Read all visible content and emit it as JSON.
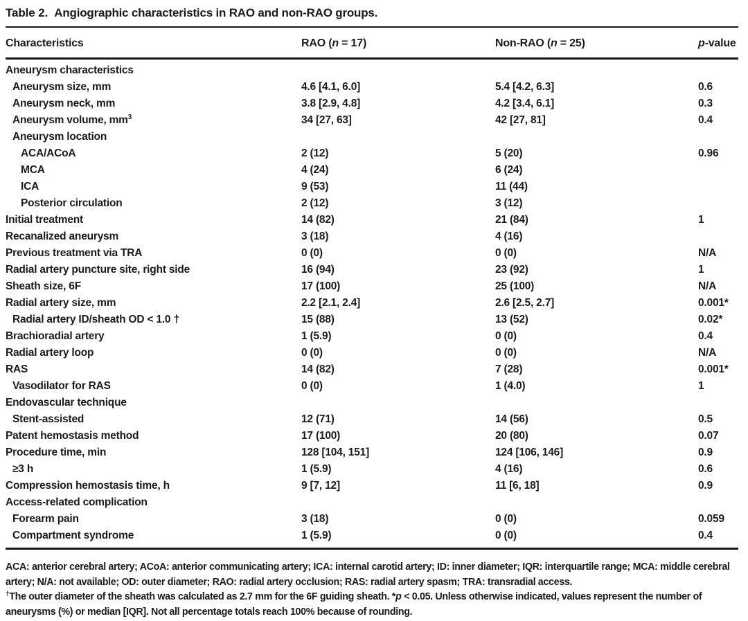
{
  "title": {
    "label": "Table 2.",
    "text": "Angiographic characteristics in RAO and non-RAO groups."
  },
  "columns": {
    "characteristics": "Characteristics",
    "rao": {
      "prefix": "RAO (",
      "var": "n",
      "rest": " = 17)"
    },
    "nonrao": {
      "prefix": "Non-RAO (",
      "var": "n",
      "rest": " = 25)"
    },
    "pvalue": {
      "var": "p",
      "rest": "-value"
    }
  },
  "table": {
    "rows": [
      {
        "label": "Aneurysm characteristics",
        "indent": 0,
        "rao": "",
        "nonrao": "",
        "p": ""
      },
      {
        "label": "Aneurysm size, mm",
        "indent": 1,
        "rao": "4.6 [4.1, 6.0]",
        "nonrao": "5.4 [4.2, 6.3]",
        "p": "0.6"
      },
      {
        "label": "Aneurysm neck, mm",
        "indent": 1,
        "rao": "3.8 [2.9, 4.8]",
        "nonrao": "4.2 [3.4, 6.1]",
        "p": "0.3"
      },
      {
        "label": "Aneurysm volume, mm",
        "sup": "3",
        "indent": 1,
        "rao": "34 [27, 63]",
        "nonrao": "42 [27, 81]",
        "p": "0.4"
      },
      {
        "label": "Aneurysm location",
        "indent": 1,
        "rao": "",
        "nonrao": "",
        "p": ""
      },
      {
        "label": "ACA/ACoA",
        "indent": 2,
        "rao": "2 (12)",
        "nonrao": "5 (20)",
        "p": "0.96"
      },
      {
        "label": "MCA",
        "indent": 2,
        "rao": "4 (24)",
        "nonrao": "6 (24)",
        "p": ""
      },
      {
        "label": "ICA",
        "indent": 2,
        "rao": "9 (53)",
        "nonrao": "11 (44)",
        "p": ""
      },
      {
        "label": "Posterior circulation",
        "indent": 2,
        "rao": "2 (12)",
        "nonrao": "3 (12)",
        "p": ""
      },
      {
        "label": "Initial treatment",
        "indent": 0,
        "rao": "14 (82)",
        "nonrao": "21 (84)",
        "p": "1"
      },
      {
        "label": "Recanalized aneurysm",
        "indent": 0,
        "rao": "3 (18)",
        "nonrao": "4 (16)",
        "p": ""
      },
      {
        "label": "Previous treatment via TRA",
        "indent": 0,
        "rao": "0 (0)",
        "nonrao": "0 (0)",
        "p": "N/A"
      },
      {
        "label": "Radial artery puncture site, right side",
        "indent": 0,
        "rao": "16 (94)",
        "nonrao": "23 (92)",
        "p": "1"
      },
      {
        "label": "Sheath size, 6F",
        "indent": 0,
        "rao": "17 (100)",
        "nonrao": "25 (100)",
        "p": "N/A"
      },
      {
        "label": "Radial artery size, mm",
        "indent": 0,
        "rao": "2.2 [2.1, 2.4]",
        "nonrao": "2.6 [2.5, 2.7]",
        "p": "0.001*"
      },
      {
        "label": "Radial artery ID/sheath OD < 1.0 †",
        "indent": 1,
        "rao": "15 (88)",
        "nonrao": "13 (52)",
        "p": "0.02*"
      },
      {
        "label": "Brachioradial artery",
        "indent": 0,
        "rao": "1 (5.9)",
        "nonrao": "0 (0)",
        "p": "0.4"
      },
      {
        "label": "Radial artery loop",
        "indent": 0,
        "rao": "0 (0)",
        "nonrao": "0 (0)",
        "p": "N/A"
      },
      {
        "label": "RAS",
        "indent": 0,
        "rao": "14 (82)",
        "nonrao": "7 (28)",
        "p": "0.001*"
      },
      {
        "label": "Vasodilator for RAS",
        "indent": 1,
        "rao": "0 (0)",
        "nonrao": "1 (4.0)",
        "p": "1"
      },
      {
        "label": "Endovascular technique",
        "indent": 0,
        "rao": "",
        "nonrao": "",
        "p": ""
      },
      {
        "label": "Stent-assisted",
        "indent": 1,
        "rao": "12 (71)",
        "nonrao": "14 (56)",
        "p": "0.5"
      },
      {
        "label": "Patent hemostasis method",
        "indent": 0,
        "rao": "17 (100)",
        "nonrao": "20 (80)",
        "p": "0.07"
      },
      {
        "label": "Procedure time, min",
        "indent": 0,
        "rao": "128 [104, 151]",
        "nonrao": "124 [106, 146]",
        "p": "0.9"
      },
      {
        "label": "≥3 h",
        "indent": 1,
        "rao": "1 (5.9)",
        "nonrao": "4 (16)",
        "p": "0.6"
      },
      {
        "label": "Compression hemostasis time, h",
        "indent": 0,
        "rao": "9 [7, 12]",
        "nonrao": "11 [6, 18]",
        "p": "0.9"
      },
      {
        "label": "Access-related complication",
        "indent": 0,
        "rao": "",
        "nonrao": "",
        "p": ""
      },
      {
        "label": "Forearm pain",
        "indent": 1,
        "rao": "3 (18)",
        "nonrao": "0 (0)",
        "p": "0.059"
      },
      {
        "label": "Compartment syndrome",
        "indent": 1,
        "rao": "1 (5.9)",
        "nonrao": "0 (0)",
        "p": "0.4"
      }
    ]
  },
  "footnotes": {
    "abbrev": "ACA: anterior cerebral artery; ACoA: anterior communicating artery; ICA: internal carotid artery; ID: inner diameter; IQR: interquartile range; MCA: middle cerebral artery; N/A: not available; OD: outer diameter; RAO: radial artery occlusion; RAS: radial artery spasm; TRA: transradial access.",
    "note": {
      "sup": "†",
      "text_a": "The outer diameter of the sheath was calculated as 2.7 mm for the 6F guiding sheath. *",
      "italic": "p",
      "text_b": " < 0.05. Unless otherwise indicated, values represent the number of aneurysms (%) or median [IQR]. Not all percentage totals reach 100% because of rounding."
    }
  }
}
